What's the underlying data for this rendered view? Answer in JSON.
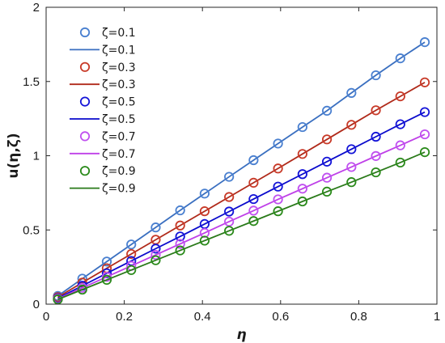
{
  "chart_data": {
    "type": "line",
    "xlabel": "η",
    "ylabel": "u(η,ζ)",
    "xlim": [
      0,
      1
    ],
    "ylim": [
      0,
      2
    ],
    "xticks": [
      "0",
      "0.2",
      "0.4",
      "0.6",
      "0.8",
      "1"
    ],
    "yticks": [
      "0",
      "0.5",
      "1",
      "1.5",
      "2"
    ],
    "xtick_values": [
      0,
      0.2,
      0.4,
      0.6,
      0.8,
      1
    ],
    "ytick_values": [
      0,
      0.5,
      1,
      1.5,
      2
    ],
    "grid": false,
    "legend_position": "top-left",
    "x": [
      0.03,
      0.0926,
      0.1552,
      0.2178,
      0.2804,
      0.343,
      0.4056,
      0.4682,
      0.5308,
      0.5934,
      0.656,
      0.7186,
      0.7812,
      0.8438,
      0.9064,
      0.969
    ],
    "series": [
      {
        "name": "ζ=0.1",
        "color": "#3a6fc0",
        "marker_color": "#4a80d0",
        "values": [
          0.055,
          0.172,
          0.287,
          0.402,
          0.517,
          0.632,
          0.745,
          0.858,
          0.97,
          1.082,
          1.193,
          1.303,
          1.423,
          1.542,
          1.656,
          1.765
        ]
      },
      {
        "name": "ζ=0.3",
        "color": "#b02a1a",
        "marker_color": "#c83a28",
        "values": [
          0.047,
          0.145,
          0.242,
          0.338,
          0.434,
          0.53,
          0.626,
          0.722,
          0.818,
          0.914,
          1.012,
          1.11,
          1.208,
          1.306,
          1.4,
          1.494
        ]
      },
      {
        "name": "ζ=0.5",
        "color": "#0a0acc",
        "marker_color": "#1414d8",
        "values": [
          0.04,
          0.124,
          0.208,
          0.291,
          0.374,
          0.456,
          0.54,
          0.624,
          0.708,
          0.792,
          0.876,
          0.96,
          1.044,
          1.128,
          1.212,
          1.294
        ]
      },
      {
        "name": "ζ=0.7",
        "color": "#bf40e8",
        "marker_color": "#c050f0",
        "values": [
          0.036,
          0.11,
          0.184,
          0.258,
          0.332,
          0.406,
          0.48,
          0.556,
          0.63,
          0.706,
          0.778,
          0.852,
          0.924,
          0.998,
          1.07,
          1.144
        ]
      },
      {
        "name": "ζ=0.9",
        "color": "#2a7a1a",
        "marker_color": "#2a8a1a",
        "values": [
          0.032,
          0.098,
          0.164,
          0.23,
          0.296,
          0.362,
          0.428,
          0.494,
          0.56,
          0.626,
          0.692,
          0.758,
          0.822,
          0.888,
          0.954,
          1.024
        ]
      }
    ]
  }
}
